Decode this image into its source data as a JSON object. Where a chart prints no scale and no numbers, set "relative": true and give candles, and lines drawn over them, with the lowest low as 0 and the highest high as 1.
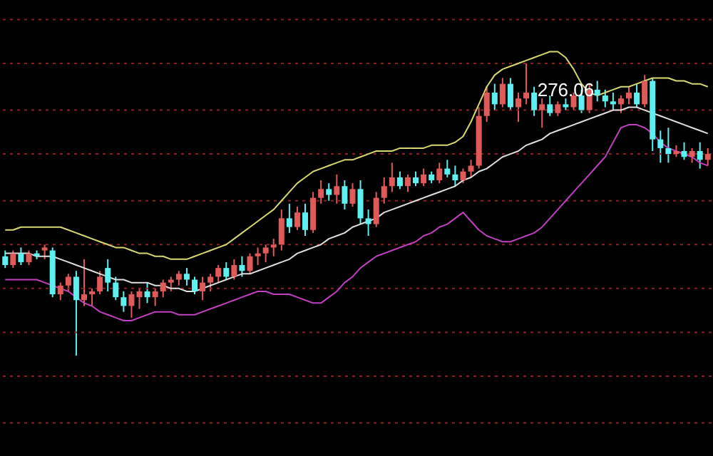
{
  "chart_data": {
    "type": "candlestick",
    "relative": true,
    "ref_lines": [
      {
        "axis": "y",
        "value": 1.15,
        "color": "#8a2020",
        "line_style": "dotted"
      },
      {
        "axis": "y",
        "value": 1.0,
        "color": "#8a2020",
        "line_style": "dotted"
      },
      {
        "axis": "y",
        "value": 0.84,
        "color": "#8a2020",
        "line_style": "dotted"
      },
      {
        "axis": "y",
        "value": 0.69,
        "color": "#8a2020",
        "line_style": "dotted"
      },
      {
        "axis": "y",
        "value": 0.53,
        "color": "#8a2020",
        "line_style": "dotted"
      },
      {
        "axis": "y",
        "value": 0.38,
        "color": "#8a2020",
        "line_style": "dotted"
      },
      {
        "axis": "y",
        "value": 0.23,
        "color": "#8a2020",
        "line_style": "dotted"
      },
      {
        "axis": "y",
        "value": 0.08,
        "color": "#8a2020",
        "line_style": "dotted"
      },
      {
        "axis": "y",
        "value": -0.07,
        "color": "#8a2020",
        "line_style": "dotted"
      },
      {
        "axis": "y",
        "value": -0.23,
        "color": "#8a2020",
        "line_style": "dotted"
      }
    ],
    "categories": [
      null,
      null,
      null,
      null,
      null,
      null,
      null,
      null,
      null,
      null,
      null,
      null,
      null,
      null,
      null,
      null,
      null,
      null,
      null,
      null,
      null,
      null,
      null,
      null,
      null,
      null,
      null,
      null,
      null,
      null,
      null,
      null,
      null,
      null,
      null,
      null,
      null,
      null,
      null,
      null,
      null,
      null,
      null,
      null,
      null,
      null,
      null,
      null,
      null,
      null,
      null,
      null,
      null,
      null,
      null,
      null,
      null,
      null,
      null,
      null,
      null,
      null,
      null,
      null,
      null,
      null,
      null,
      null,
      null,
      null,
      null,
      null,
      null,
      null,
      null,
      null,
      null,
      null,
      null,
      null,
      null,
      null,
      null,
      null,
      null,
      null,
      null,
      null,
      null,
      null
    ],
    "ohlc": [
      [
        0.34,
        0.36,
        0.3,
        0.31
      ],
      [
        0.31,
        0.36,
        0.3,
        0.35
      ],
      [
        0.35,
        0.37,
        0.31,
        0.32
      ],
      [
        0.32,
        0.36,
        0.31,
        0.35
      ],
      [
        0.35,
        0.36,
        0.33,
        0.34
      ],
      [
        0.36,
        0.38,
        0.33,
        0.37
      ],
      [
        0.36,
        0.37,
        0.2,
        0.21
      ],
      [
        0.21,
        0.25,
        0.19,
        0.24
      ],
      [
        0.24,
        0.28,
        0.22,
        0.27
      ],
      [
        0.27,
        0.29,
        0.0,
        0.19
      ],
      [
        0.19,
        0.33,
        0.17,
        0.21
      ],
      [
        0.21,
        0.23,
        0.17,
        0.22
      ],
      [
        0.22,
        0.29,
        0.21,
        0.27
      ],
      [
        0.3,
        0.33,
        0.22,
        0.25
      ],
      [
        0.25,
        0.27,
        0.19,
        0.2
      ],
      [
        0.2,
        0.22,
        0.15,
        0.17
      ],
      [
        0.17,
        0.22,
        0.13,
        0.21
      ],
      [
        0.2,
        0.23,
        0.16,
        0.22
      ],
      [
        0.22,
        0.25,
        0.18,
        0.2
      ],
      [
        0.2,
        0.23,
        0.17,
        0.22
      ],
      [
        0.22,
        0.26,
        0.2,
        0.25
      ],
      [
        0.25,
        0.27,
        0.22,
        0.26
      ],
      [
        0.26,
        0.29,
        0.24,
        0.28
      ],
      [
        0.28,
        0.3,
        0.24,
        0.26
      ],
      [
        0.26,
        0.27,
        0.21,
        0.22
      ],
      [
        0.22,
        0.27,
        0.19,
        0.25
      ],
      [
        0.25,
        0.28,
        0.22,
        0.27
      ],
      [
        0.27,
        0.31,
        0.25,
        0.3
      ],
      [
        0.3,
        0.32,
        0.26,
        0.27
      ],
      [
        0.27,
        0.33,
        0.26,
        0.31
      ],
      [
        0.31,
        0.34,
        0.27,
        0.29
      ],
      [
        0.29,
        0.35,
        0.28,
        0.34
      ],
      [
        0.34,
        0.37,
        0.31,
        0.35
      ],
      [
        0.35,
        0.38,
        0.32,
        0.37
      ],
      [
        0.37,
        0.4,
        0.34,
        0.38
      ],
      [
        0.38,
        0.5,
        0.36,
        0.47
      ],
      [
        0.47,
        0.52,
        0.42,
        0.44
      ],
      [
        0.44,
        0.51,
        0.43,
        0.49
      ],
      [
        0.49,
        0.52,
        0.41,
        0.43
      ],
      [
        0.43,
        0.56,
        0.42,
        0.54
      ],
      [
        0.54,
        0.6,
        0.52,
        0.57
      ],
      [
        0.57,
        0.59,
        0.53,
        0.55
      ],
      [
        0.55,
        0.62,
        0.52,
        0.58
      ],
      [
        0.58,
        0.6,
        0.5,
        0.52
      ],
      [
        0.52,
        0.59,
        0.51,
        0.57
      ],
      [
        0.57,
        0.6,
        0.45,
        0.47
      ],
      [
        0.47,
        0.5,
        0.41,
        0.45
      ],
      [
        0.45,
        0.56,
        0.44,
        0.54
      ],
      [
        0.54,
        0.61,
        0.52,
        0.58
      ],
      [
        0.58,
        0.66,
        0.56,
        0.61
      ],
      [
        0.61,
        0.63,
        0.57,
        0.58
      ],
      [
        0.58,
        0.62,
        0.56,
        0.61
      ],
      [
        0.61,
        0.63,
        0.58,
        0.59
      ],
      [
        0.59,
        0.64,
        0.58,
        0.62
      ],
      [
        0.62,
        0.63,
        0.59,
        0.6
      ],
      [
        0.6,
        0.66,
        0.59,
        0.64
      ],
      [
        0.64,
        0.67,
        0.61,
        0.62
      ],
      [
        0.62,
        0.65,
        0.58,
        0.6
      ],
      [
        0.6,
        0.64,
        0.59,
        0.63
      ],
      [
        0.63,
        0.67,
        0.61,
        0.65
      ],
      [
        0.65,
        0.85,
        0.64,
        0.82
      ],
      [
        0.82,
        0.92,
        0.8,
        0.9
      ],
      [
        0.9,
        0.93,
        0.84,
        0.86
      ],
      [
        0.86,
        0.95,
        0.85,
        0.93
      ],
      [
        0.93,
        0.95,
        0.84,
        0.85
      ],
      [
        0.85,
        0.9,
        0.8,
        0.88
      ],
      [
        0.88,
        1.0,
        0.86,
        0.9
      ],
      [
        0.9,
        0.92,
        0.82,
        0.84
      ],
      [
        0.84,
        0.88,
        0.78,
        0.86
      ],
      [
        0.86,
        0.89,
        0.82,
        0.83
      ],
      [
        0.83,
        0.87,
        0.82,
        0.86
      ],
      [
        0.86,
        0.88,
        0.84,
        0.85
      ],
      [
        0.85,
        0.9,
        0.84,
        0.89
      ],
      [
        0.89,
        0.91,
        0.83,
        0.84
      ],
      [
        0.84,
        0.93,
        0.83,
        0.91
      ],
      [
        0.91,
        0.94,
        0.87,
        0.89
      ],
      [
        0.89,
        0.91,
        0.85,
        0.87
      ],
      [
        0.87,
        0.9,
        0.84,
        0.86
      ],
      [
        0.86,
        0.89,
        0.83,
        0.88
      ],
      [
        0.88,
        0.92,
        0.86,
        0.9
      ],
      [
        0.9,
        0.93,
        0.85,
        0.86
      ],
      [
        0.86,
        0.96,
        0.85,
        0.94
      ],
      [
        0.94,
        0.95,
        0.7,
        0.74
      ],
      [
        0.74,
        0.77,
        0.66,
        0.71
      ],
      [
        0.71,
        0.78,
        0.66,
        0.69
      ],
      [
        0.69,
        0.72,
        0.68,
        0.7
      ],
      [
        0.7,
        0.73,
        0.67,
        0.68
      ],
      [
        0.68,
        0.71,
        0.66,
        0.7
      ],
      [
        0.7,
        0.73,
        0.64,
        0.67
      ],
      [
        0.67,
        0.71,
        0.65,
        0.69
      ]
    ],
    "colors": [
      "#5ef0f0",
      "#e05a5a",
      "#5ef0f0",
      "#e05a5a",
      "#5ef0f0",
      "#e05a5a",
      "#5ef0f0",
      "#e05a5a",
      "#e05a5a",
      "#5ef0f0",
      "#e05a5a",
      "#e05a5a",
      "#e05a5a",
      "#5ef0f0",
      "#5ef0f0",
      "#5ef0f0",
      "#e05a5a",
      "#e05a5a",
      "#5ef0f0",
      "#e05a5a",
      "#e05a5a",
      "#e05a5a",
      "#e05a5a",
      "#5ef0f0",
      "#5ef0f0",
      "#e05a5a",
      "#e05a5a",
      "#e05a5a",
      "#5ef0f0",
      "#e05a5a",
      "#5ef0f0",
      "#e05a5a",
      "#e05a5a",
      "#e05a5a",
      "#e05a5a",
      "#e05a5a",
      "#5ef0f0",
      "#e05a5a",
      "#5ef0f0",
      "#e05a5a",
      "#e05a5a",
      "#5ef0f0",
      "#e05a5a",
      "#5ef0f0",
      "#e05a5a",
      "#5ef0f0",
      "#5ef0f0",
      "#e05a5a",
      "#e05a5a",
      "#e05a5a",
      "#5ef0f0",
      "#e05a5a",
      "#5ef0f0",
      "#e05a5a",
      "#5ef0f0",
      "#e05a5a",
      "#5ef0f0",
      "#5ef0f0",
      "#e05a5a",
      "#e05a5a",
      "#e05a5a",
      "#e05a5a",
      "#5ef0f0",
      "#e05a5a",
      "#5ef0f0",
      "#e05a5a",
      "#e05a5a",
      "#5ef0f0",
      "#e05a5a",
      "#5ef0f0",
      "#e05a5a",
      "#5ef0f0",
      "#e05a5a",
      "#5ef0f0",
      "#e05a5a",
      "#5ef0f0",
      "#5ef0f0",
      "#5ef0f0",
      "#e05a5a",
      "#e05a5a",
      "#5ef0f0",
      "#e05a5a",
      "#5ef0f0",
      "#5ef0f0",
      "#5ef0f0",
      "#e05a5a",
      "#5ef0f0",
      "#e05a5a",
      "#5ef0f0",
      "#e05a5a"
    ],
    "series": [
      {
        "type": "line",
        "color": "#d8d870",
        "values": [
          0.43,
          0.43,
          0.44,
          0.44,
          0.44,
          0.44,
          0.44,
          0.44,
          0.43,
          0.42,
          0.41,
          0.4,
          0.39,
          0.38,
          0.37,
          0.37,
          0.36,
          0.35,
          0.35,
          0.34,
          0.34,
          0.33,
          0.33,
          0.33,
          0.34,
          0.35,
          0.36,
          0.37,
          0.38,
          0.4,
          0.42,
          0.44,
          0.46,
          0.48,
          0.5,
          0.53,
          0.56,
          0.59,
          0.61,
          0.63,
          0.64,
          0.65,
          0.66,
          0.67,
          0.67,
          0.68,
          0.69,
          0.7,
          0.7,
          0.7,
          0.71,
          0.71,
          0.71,
          0.71,
          0.72,
          0.72,
          0.72,
          0.73,
          0.75,
          0.8,
          0.86,
          0.92,
          0.96,
          0.98,
          0.99,
          1.0,
          1.01,
          1.02,
          1.03,
          1.04,
          1.04,
          1.02,
          0.98,
          0.93,
          0.9,
          0.89,
          0.9,
          0.91,
          0.92,
          0.92,
          0.93,
          0.94,
          0.95,
          0.95,
          0.95,
          0.94,
          0.94,
          0.93,
          0.93,
          0.92
        ]
      },
      {
        "type": "line",
        "color": "#e0e0e0",
        "values": [
          0.35,
          0.35,
          0.35,
          0.35,
          0.34,
          0.34,
          0.34,
          0.33,
          0.32,
          0.31,
          0.3,
          0.29,
          0.28,
          0.27,
          0.26,
          0.26,
          0.25,
          0.25,
          0.25,
          0.24,
          0.24,
          0.23,
          0.23,
          0.22,
          0.22,
          0.23,
          0.24,
          0.25,
          0.26,
          0.27,
          0.28,
          0.28,
          0.29,
          0.3,
          0.31,
          0.32,
          0.33,
          0.35,
          0.36,
          0.37,
          0.38,
          0.4,
          0.41,
          0.42,
          0.44,
          0.45,
          0.46,
          0.47,
          0.49,
          0.5,
          0.51,
          0.52,
          0.53,
          0.54,
          0.55,
          0.56,
          0.57,
          0.58,
          0.6,
          0.61,
          0.63,
          0.64,
          0.66,
          0.68,
          0.69,
          0.7,
          0.72,
          0.73,
          0.74,
          0.76,
          0.77,
          0.78,
          0.79,
          0.8,
          0.81,
          0.82,
          0.83,
          0.84,
          0.84,
          0.85,
          0.85,
          0.84,
          0.83,
          0.82,
          0.81,
          0.8,
          0.79,
          0.78,
          0.77,
          0.76
        ]
      },
      {
        "type": "line",
        "color": "#c040c0",
        "values": [
          0.26,
          0.26,
          0.26,
          0.26,
          0.26,
          0.25,
          0.24,
          0.23,
          0.22,
          0.2,
          0.18,
          0.17,
          0.15,
          0.14,
          0.13,
          0.12,
          0.12,
          0.13,
          0.14,
          0.15,
          0.15,
          0.15,
          0.14,
          0.14,
          0.14,
          0.15,
          0.16,
          0.17,
          0.18,
          0.19,
          0.2,
          0.21,
          0.22,
          0.22,
          0.21,
          0.21,
          0.21,
          0.2,
          0.19,
          0.18,
          0.18,
          0.2,
          0.22,
          0.25,
          0.27,
          0.3,
          0.32,
          0.34,
          0.35,
          0.36,
          0.37,
          0.38,
          0.39,
          0.41,
          0.42,
          0.44,
          0.45,
          0.47,
          0.49,
          0.46,
          0.43,
          0.41,
          0.4,
          0.39,
          0.39,
          0.4,
          0.41,
          0.42,
          0.44,
          0.47,
          0.5,
          0.53,
          0.56,
          0.59,
          0.62,
          0.65,
          0.68,
          0.73,
          0.78,
          0.79,
          0.79,
          0.78,
          0.76,
          0.73,
          0.71,
          0.7,
          0.69,
          0.68,
          0.66,
          0.65
        ]
      }
    ],
    "annotations": [
      "276.06"
    ]
  }
}
